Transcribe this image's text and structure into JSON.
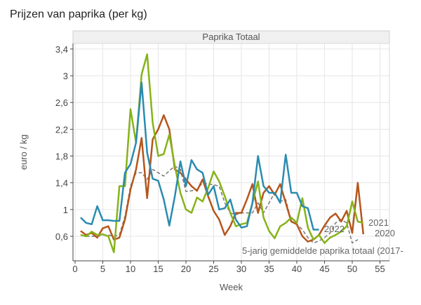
{
  "chart_data": {
    "type": "line",
    "title": "Prijzen van paprika (per kg)",
    "facet_label": "Paprika Totaal",
    "xlabel": "Week",
    "ylabel": "euro / kg",
    "xlim": [
      0,
      56
    ],
    "ylim": [
      0.4,
      3.5
    ],
    "xticks": [
      0,
      5,
      10,
      15,
      20,
      25,
      30,
      35,
      40,
      45,
      50,
      55
    ],
    "yticks": [
      0.6,
      1,
      1.4,
      1.8,
      2.2,
      2.6,
      3,
      3.4
    ],
    "ytick_labels": [
      "0,6",
      "1",
      "1,4",
      "1,8",
      "2,2",
      "2,6",
      "3",
      "3,4"
    ],
    "grid": true,
    "series": [
      {
        "name": "5-jarig gemiddelde paprika totaal (2017-",
        "color": "#777777",
        "dashed": true,
        "values": [
          0.62,
          0.6,
          0.6,
          0.6,
          0.62,
          0.62,
          0.6,
          0.62,
          0.9,
          1.35,
          1.55,
          1.55,
          1.45,
          1.6,
          1.55,
          1.5,
          1.58,
          1.65,
          1.6,
          1.27,
          1.28,
          1.3,
          1.4,
          1.38,
          1.37,
          1.35,
          1.1,
          0.95,
          0.92,
          0.95,
          0.95,
          0.95,
          1.1,
          0.95,
          1.1,
          1.25,
          1.12,
          1.15,
          0.83,
          0.78,
          0.7,
          0.58,
          0.5,
          0.53,
          0.58,
          0.65,
          0.8,
          0.85,
          0.8,
          0.5,
          0.55
        ]
      },
      {
        "name": "2020",
        "color": "#b5561d",
        "values": [
          0.68,
          0.62,
          0.65,
          0.58,
          0.72,
          0.75,
          0.55,
          0.58,
          0.85,
          1.3,
          1.6,
          2.07,
          1.17,
          2.05,
          2.2,
          2.41,
          2.2,
          1.6,
          1.55,
          1.45,
          1.35,
          1.28,
          1.45,
          1.2,
          0.98,
          0.85,
          0.62,
          0.75,
          0.95,
          0.95,
          1.15,
          1.38,
          0.95,
          1.25,
          1.35,
          1.22,
          1.38,
          1.1,
          0.82,
          0.78,
          0.6,
          0.52,
          0.55,
          0.62,
          0.76,
          0.88,
          0.94,
          0.82,
          0.98,
          0.65,
          1.4,
          0.63
        ]
      },
      {
        "name": "2021",
        "color": "#86b31a",
        "values": [
          0.62,
          0.6,
          0.67,
          0.62,
          0.63,
          0.6,
          0.36,
          1.35,
          1.35,
          2.5,
          2.0,
          3.02,
          3.32,
          2.3,
          1.8,
          1.83,
          2.12,
          1.65,
          1.25,
          1.0,
          0.95,
          1.18,
          1.12,
          1.32,
          1.57,
          1.42,
          1.2,
          0.95,
          0.75,
          0.78,
          0.8,
          1.1,
          1.42,
          0.88,
          0.68,
          0.57,
          0.75,
          0.8,
          0.88,
          0.8,
          1.17,
          0.73,
          0.55,
          0.62,
          0.5,
          0.58,
          0.62,
          0.67,
          0.75,
          1.12,
          0.82,
          0.8
        ]
      },
      {
        "name": "2022",
        "color": "#2b8bb0",
        "values": [
          0.88,
          0.8,
          0.78,
          1.05,
          0.84,
          0.84,
          0.83,
          0.83,
          1.55,
          1.68,
          2.0,
          2.9,
          1.85,
          1.46,
          1.43,
          1.15,
          0.76,
          1.2,
          1.72,
          1.35,
          1.74,
          1.6,
          1.55,
          1.22,
          1.35,
          1.0,
          1.02,
          1.15,
          0.85,
          0.73,
          0.75,
          1.1,
          1.8,
          1.35,
          1.25,
          1.25,
          1.1,
          1.82,
          1.25,
          1.25,
          1.05,
          1.02,
          0.7,
          0.7
        ]
      }
    ]
  }
}
